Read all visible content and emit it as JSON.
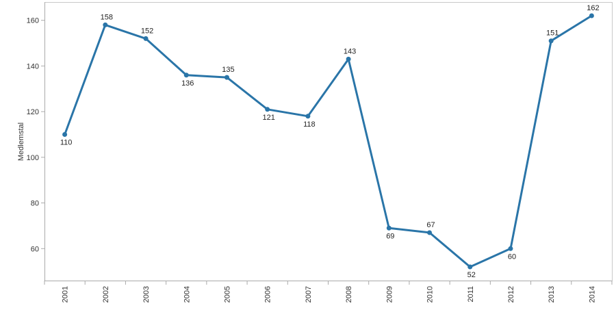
{
  "chart_data": {
    "type": "line",
    "title": "",
    "xlabel": "",
    "ylabel": "Medlemstal",
    "categories": [
      "2001",
      "2002",
      "2003",
      "2004",
      "2005",
      "2006",
      "2007",
      "2008",
      "2009",
      "2010",
      "2011",
      "2012",
      "2013",
      "2014"
    ],
    "series": [
      {
        "values": [
          110,
          158,
          152,
          136,
          135,
          121,
          118,
          143,
          69,
          67,
          52,
          60,
          151,
          162
        ]
      }
    ],
    "ylim": [
      46,
      168
    ],
    "yticks": [
      60,
      80,
      100,
      120,
      140,
      160
    ],
    "grid": false,
    "legend": "none",
    "label_positions": [
      "below",
      "above",
      "above",
      "below",
      "above",
      "below",
      "below",
      "above",
      "below",
      "above",
      "below",
      "below",
      "above",
      "above"
    ],
    "colors": {
      "line": "#2a75a8",
      "axis": "#aaaaaa",
      "frame": "#c8c8c8"
    }
  }
}
